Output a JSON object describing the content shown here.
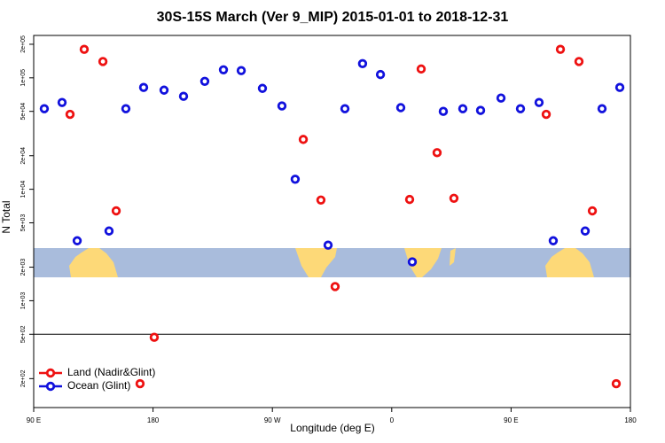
{
  "chart_data": {
    "type": "scatter",
    "title": "30S-15S March (Ver 9_MIP)   2015-01-01 to 2018-12-31",
    "x_label": "Longitude (deg E)",
    "y_label": "N Total",
    "log_y": true,
    "xlim": [
      90,
      540
    ],
    "ylim": [
      110,
      240000
    ],
    "xticks": [
      {
        "value": 90,
        "label": "90 E"
      },
      {
        "value": 180,
        "label": "180"
      },
      {
        "value": 270,
        "label": "90 W"
      },
      {
        "value": 360,
        "label": "0"
      },
      {
        "value": 450,
        "label": "90 E"
      },
      {
        "value": 540,
        "label": "180"
      }
    ],
    "yticks": [
      {
        "value": 200,
        "label": "2e+02"
      },
      {
        "value": 500,
        "label": "5e+02"
      },
      {
        "value": 1000,
        "label": "1e+03"
      },
      {
        "value": 2000,
        "label": "2e+03"
      },
      {
        "value": 5000,
        "label": "5e+03"
      },
      {
        "value": 10000,
        "label": "1e+04"
      },
      {
        "value": 20000,
        "label": "2e+04"
      },
      {
        "value": 50000,
        "label": "5e+04"
      },
      {
        "value": 100000,
        "label": "1e+05"
      },
      {
        "value": 200000,
        "label": "2e+05"
      }
    ],
    "reference_line": 500,
    "legend": "bottom-left",
    "series": [
      {
        "name": "Land (Nadir&Glint)",
        "color": "#ee1111",
        "x": [
          117.4,
          128.1,
          142.2,
          152.2,
          170.2,
          180.9,
          293.3,
          306.6,
          317.3,
          373.5,
          382.2,
          394.2,
          406.9,
          476.5,
          487.2,
          501.2,
          511.3,
          529.3
        ],
        "values": [
          47000,
          180000,
          140000,
          6400,
          180,
          470,
          28000,
          8000,
          1340,
          8100,
          120000,
          21300,
          8300,
          47000,
          180000,
          140000,
          6400,
          180
        ]
      },
      {
        "name": "Ocean (Glint)",
        "color": "#1111dd",
        "x": [
          98,
          111.4,
          122.8,
          146.8,
          159.5,
          172.9,
          188.3,
          203,
          219,
          233.1,
          246.5,
          262.5,
          277.2,
          287.2,
          312,
          324.7,
          338,
          351.5,
          366.8,
          375.5,
          398.9,
          413.6,
          427,
          442.4,
          457.1,
          471.1,
          481.8,
          505.9,
          518.6,
          532
        ],
        "values": [
          52800,
          60100,
          3450,
          4220,
          52800,
          81900,
          77500,
          68200,
          93000,
          118000,
          116000,
          80400,
          55900,
          12300,
          3150,
          52800,
          134000,
          107000,
          54000,
          2230,
          50000,
          52800,
          51000,
          65800,
          52800,
          60000,
          3450,
          4220,
          52800,
          81900
        ]
      }
    ]
  }
}
